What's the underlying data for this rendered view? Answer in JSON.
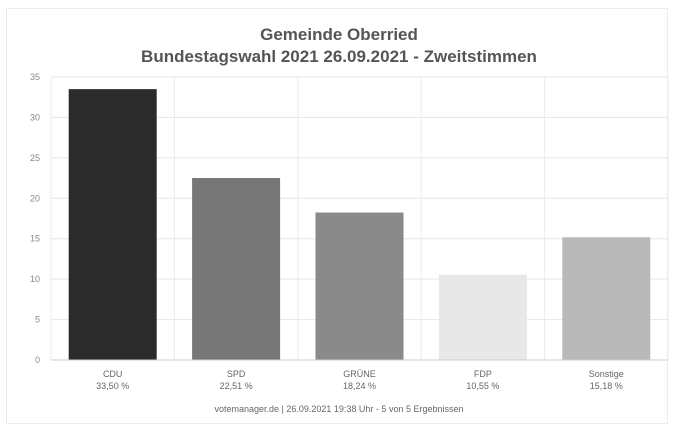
{
  "chart_data": {
    "type": "bar",
    "title": "Gemeinde Oberried",
    "subtitle": "Bundestagswahl 2021 26.09.2021  - Zweitstimmen",
    "categories": [
      "CDU",
      "SPD",
      "GRÜNE",
      "FDP",
      "Sonstige"
    ],
    "value_labels": [
      "33,50 %",
      "22,51 %",
      "18,24 %",
      "10,55 %",
      "15,18 %"
    ],
    "values": [
      33.5,
      22.51,
      18.24,
      10.55,
      15.18
    ],
    "colors": [
      "#2b2b2b",
      "#777777",
      "#8a8a8a",
      "#e8e8e8",
      "#b9b9b9"
    ],
    "ylim": [
      0,
      35
    ],
    "yticks": [
      0,
      5,
      10,
      15,
      20,
      25,
      30,
      35
    ],
    "grid": true,
    "xlabel": "",
    "ylabel": ""
  },
  "footer": "votemanager.de | 26.09.2021 19:38 Uhr - 5 von 5 Ergebnissen"
}
